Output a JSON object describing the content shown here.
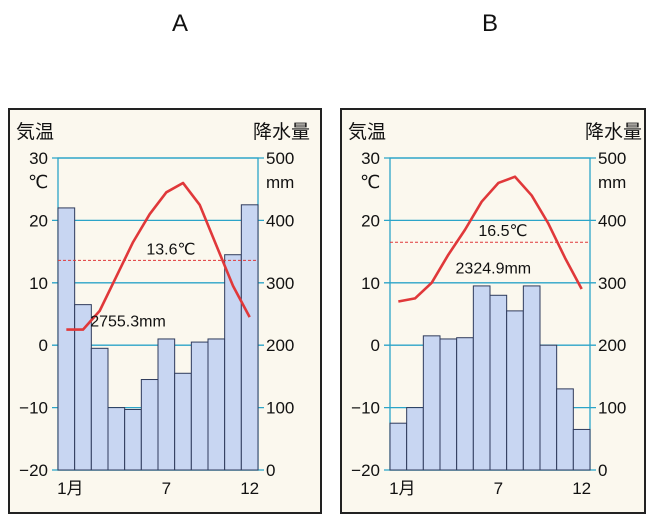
{
  "panels": {
    "a_label": "A",
    "b_label": "B"
  },
  "chart_data": [
    {
      "type": "bar+line",
      "panel": "A",
      "left_axis_title": "気温",
      "right_axis_title": "降水量",
      "temp_unit": "℃",
      "precip_unit": "mm",
      "temp_ticks": [
        "30",
        "20",
        "10",
        "0",
        "−10",
        "−20"
      ],
      "precip_ticks": [
        "500",
        "400",
        "300",
        "200",
        "100",
        "0"
      ],
      "x_ticks": [
        "1月",
        "7",
        "12"
      ],
      "temp_ylim": [
        -20,
        30
      ],
      "precip_ylim": [
        0,
        500
      ],
      "months": [
        1,
        2,
        3,
        4,
        5,
        6,
        7,
        8,
        9,
        10,
        11,
        12
      ],
      "precipitation_mm": [
        420,
        265,
        195,
        100,
        97,
        145,
        210,
        155,
        205,
        210,
        345,
        425
      ],
      "temperature_c": [
        2.5,
        2.5,
        5.5,
        11,
        16.5,
        21,
        24.5,
        26,
        22.5,
        16,
        9.5,
        4.5
      ],
      "mean_temp_label": "13.6℃",
      "mean_temp_value": 13.6,
      "annual_precip_label": "2755.3mm"
    },
    {
      "type": "bar+line",
      "panel": "B",
      "left_axis_title": "気温",
      "right_axis_title": "降水量",
      "temp_unit": "℃",
      "precip_unit": "mm",
      "temp_ticks": [
        "30",
        "20",
        "10",
        "0",
        "−10",
        "−20"
      ],
      "precip_ticks": [
        "500",
        "400",
        "300",
        "200",
        "100",
        "0"
      ],
      "x_ticks": [
        "1月",
        "7",
        "12"
      ],
      "temp_ylim": [
        -20,
        30
      ],
      "precip_ylim": [
        0,
        500
      ],
      "months": [
        1,
        2,
        3,
        4,
        5,
        6,
        7,
        8,
        9,
        10,
        11,
        12
      ],
      "precipitation_mm": [
        75,
        100,
        215,
        210,
        212,
        295,
        280,
        255,
        295,
        200,
        130,
        65
      ],
      "temperature_c": [
        7,
        7.5,
        10,
        14.5,
        18.5,
        23,
        26,
        27,
        24,
        19.5,
        14,
        9
      ],
      "mean_temp_label": "16.5℃",
      "mean_temp_value": 16.5,
      "annual_precip_label": "2324.9mm"
    }
  ],
  "colors": {
    "bar_fill": "#c8d6f2",
    "bar_stroke": "#2f3b5c",
    "grid": "#2ba4c8",
    "temp_line": "#e0383a",
    "mean_line": "#e0383a"
  }
}
